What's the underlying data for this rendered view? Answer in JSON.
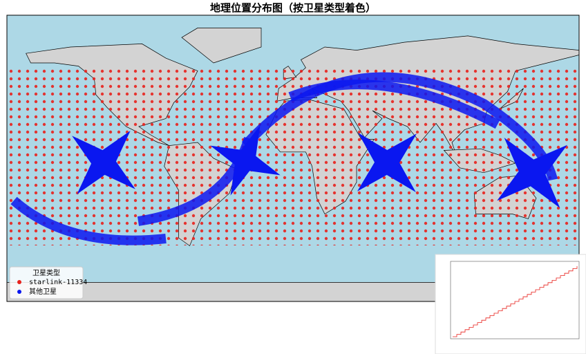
{
  "title": "地理位置分布图（按卫星类型着色）",
  "legend": {
    "title": "卫星类型",
    "items": [
      {
        "label": "starlink-11334",
        "color": "#e8211c"
      },
      {
        "label": "其他卫星",
        "color": "#0a17f0"
      }
    ]
  }
}
